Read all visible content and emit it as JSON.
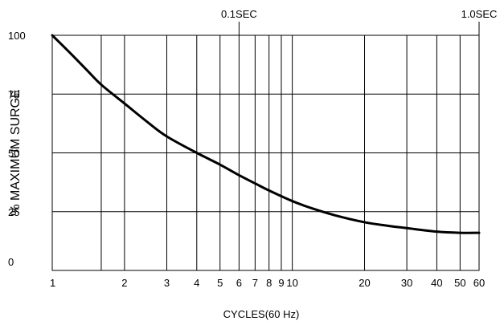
{
  "chart_data": {
    "type": "line",
    "x_scale": "log",
    "xlabel": "CYCLES(60 Hz)",
    "ylabel": "% MAXIMUM SURGE",
    "xlim": [
      1,
      60
    ],
    "ylim": [
      0,
      100
    ],
    "x_ticks": [
      1,
      2,
      3,
      4,
      5,
      6,
      7,
      8,
      9,
      10,
      20,
      30,
      40,
      50,
      60
    ],
    "x_tick_labels": [
      "1",
      "2",
      "3",
      "4",
      "5",
      "6",
      "7",
      "8",
      "9",
      "10",
      "20",
      "30",
      "40",
      "50",
      "60"
    ],
    "x_extra_gridlines": [
      1.6
    ],
    "y_ticks": [
      0,
      25,
      50,
      75,
      100
    ],
    "y_tick_labels": [
      "0",
      "25",
      "50",
      "75",
      "100"
    ],
    "top_annotations": [
      {
        "x": 6,
        "label": "0.1SEC"
      },
      {
        "x": 60,
        "label": "1.0SEC"
      }
    ],
    "grid": true,
    "series": [
      {
        "color": "#000000",
        "x": [
          1,
          1.2,
          1.4,
          1.6,
          2,
          2.5,
          3,
          4,
          5,
          6,
          7,
          8,
          10,
          12,
          15,
          20,
          25,
          30,
          40,
          50,
          60
        ],
        "y": [
          100,
          92,
          85,
          79,
          71,
          63,
          57,
          50,
          45,
          40.5,
          37,
          34,
          29.5,
          26.5,
          23.5,
          20.5,
          19,
          18,
          16.5,
          16,
          16
        ]
      }
    ]
  }
}
